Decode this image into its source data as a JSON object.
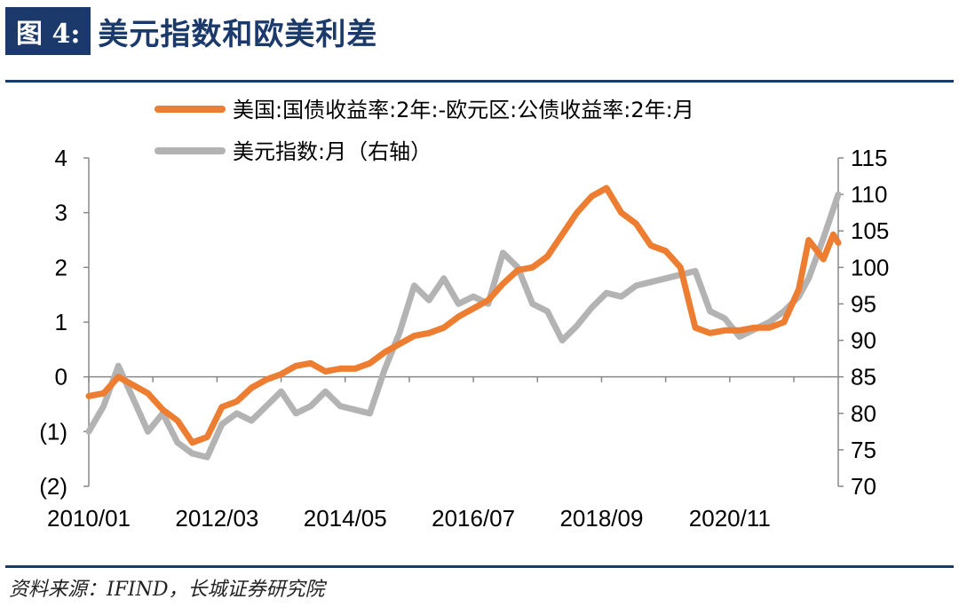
{
  "header": {
    "figure_number": "图 4:",
    "title": "美元指数和欧美利差"
  },
  "source": "资料来源：IFIND，长城证券研究院",
  "colors": {
    "spread": "#ed7d31",
    "dxy": "#b3b3b3",
    "negative_tick": "#ff0000",
    "brand": "#1b3a6b"
  },
  "chart_data": {
    "type": "line",
    "legend_position": "top",
    "legend": [
      "美国:国债收益率:2年:-欧元区:公债收益率:2年:月",
      "美元指数:月（右轴）"
    ],
    "x_tick_labels": [
      "2010/01",
      "2012/03",
      "2014/05",
      "2016/07",
      "2018/09",
      "2020/11"
    ],
    "y_left_tick_labels": [
      "4",
      "3",
      "2",
      "1",
      "0",
      "(1)",
      "(2)"
    ],
    "y_right_tick_labels": [
      "115",
      "110",
      "105",
      "100",
      "95",
      "90",
      "85",
      "80",
      "75",
      "70"
    ],
    "y_left_lim": [
      -2,
      4
    ],
    "y_right_lim": [
      70,
      115
    ],
    "x_range": [
      "2010/01",
      "2022/09"
    ],
    "series": [
      {
        "name": "美国:国债收益率:2年:-欧元区:公债收益率:2年:月",
        "axis": "left",
        "points": [
          [
            "2010/01",
            -0.35
          ],
          [
            "2010/04",
            -0.3
          ],
          [
            "2010/07",
            0.0
          ],
          [
            "2010/10",
            -0.15
          ],
          [
            "2011/01",
            -0.3
          ],
          [
            "2011/04",
            -0.6
          ],
          [
            "2011/07",
            -0.8
          ],
          [
            "2011/10",
            -1.2
          ],
          [
            "2012/01",
            -1.1
          ],
          [
            "2012/04",
            -0.55
          ],
          [
            "2012/07",
            -0.45
          ],
          [
            "2012/10",
            -0.2
          ],
          [
            "2013/01",
            -0.05
          ],
          [
            "2013/04",
            0.05
          ],
          [
            "2013/07",
            0.2
          ],
          [
            "2013/10",
            0.25
          ],
          [
            "2014/01",
            0.1
          ],
          [
            "2014/04",
            0.15
          ],
          [
            "2014/07",
            0.15
          ],
          [
            "2014/10",
            0.25
          ],
          [
            "2015/01",
            0.45
          ],
          [
            "2015/04",
            0.6
          ],
          [
            "2015/07",
            0.75
          ],
          [
            "2015/10",
            0.8
          ],
          [
            "2016/01",
            0.9
          ],
          [
            "2016/04",
            1.1
          ],
          [
            "2016/07",
            1.25
          ],
          [
            "2016/10",
            1.4
          ],
          [
            "2017/01",
            1.7
          ],
          [
            "2017/04",
            1.95
          ],
          [
            "2017/07",
            2.0
          ],
          [
            "2017/10",
            2.2
          ],
          [
            "2018/01",
            2.6
          ],
          [
            "2018/04",
            3.0
          ],
          [
            "2018/07",
            3.3
          ],
          [
            "2018/10",
            3.45
          ],
          [
            "2019/01",
            3.0
          ],
          [
            "2019/04",
            2.8
          ],
          [
            "2019/07",
            2.4
          ],
          [
            "2019/10",
            2.3
          ],
          [
            "2020/01",
            2.0
          ],
          [
            "2020/04",
            0.9
          ],
          [
            "2020/07",
            0.8
          ],
          [
            "2020/10",
            0.85
          ],
          [
            "2021/01",
            0.85
          ],
          [
            "2021/04",
            0.9
          ],
          [
            "2021/07",
            0.9
          ],
          [
            "2021/10",
            1.0
          ],
          [
            "2022/01",
            1.6
          ],
          [
            "2022/03",
            2.5
          ],
          [
            "2022/06",
            2.15
          ],
          [
            "2022/08",
            2.6
          ],
          [
            "2022/09",
            2.45
          ]
        ]
      },
      {
        "name": "美元指数:月（右轴）",
        "axis": "right",
        "points": [
          [
            "2010/01",
            77.5
          ],
          [
            "2010/04",
            81
          ],
          [
            "2010/07",
            86.5
          ],
          [
            "2010/10",
            82
          ],
          [
            "2011/01",
            77.5
          ],
          [
            "2011/04",
            80
          ],
          [
            "2011/07",
            76
          ],
          [
            "2011/10",
            74.5
          ],
          [
            "2012/01",
            74
          ],
          [
            "2012/04",
            78.5
          ],
          [
            "2012/07",
            80
          ],
          [
            "2012/10",
            79
          ],
          [
            "2013/01",
            81
          ],
          [
            "2013/04",
            83
          ],
          [
            "2013/07",
            80
          ],
          [
            "2013/10",
            81
          ],
          [
            "2014/01",
            83
          ],
          [
            "2014/04",
            81
          ],
          [
            "2014/07",
            80.5
          ],
          [
            "2014/10",
            80
          ],
          [
            "2015/01",
            86
          ],
          [
            "2015/04",
            91
          ],
          [
            "2015/07",
            97.5
          ],
          [
            "2015/10",
            95.5
          ],
          [
            "2016/01",
            98.5
          ],
          [
            "2016/04",
            95
          ],
          [
            "2016/07",
            96
          ],
          [
            "2016/10",
            95
          ],
          [
            "2017/01",
            102
          ],
          [
            "2017/04",
            100
          ],
          [
            "2017/07",
            95
          ],
          [
            "2017/10",
            94
          ],
          [
            "2018/01",
            90
          ],
          [
            "2018/04",
            92
          ],
          [
            "2018/07",
            94.5
          ],
          [
            "2018/10",
            96.5
          ],
          [
            "2019/01",
            96
          ],
          [
            "2019/04",
            97.5
          ],
          [
            "2019/07",
            98
          ],
          [
            "2019/10",
            98.5
          ],
          [
            "2020/01",
            99
          ],
          [
            "2020/04",
            99.5
          ],
          [
            "2020/07",
            94
          ],
          [
            "2020/10",
            93
          ],
          [
            "2021/01",
            90.5
          ],
          [
            "2021/04",
            91.5
          ],
          [
            "2021/07",
            92.5
          ],
          [
            "2021/10",
            94
          ],
          [
            "2022/01",
            96
          ],
          [
            "2022/03",
            98.5
          ],
          [
            "2022/06",
            104
          ],
          [
            "2022/08",
            108
          ],
          [
            "2022/09",
            110
          ]
        ]
      }
    ]
  }
}
